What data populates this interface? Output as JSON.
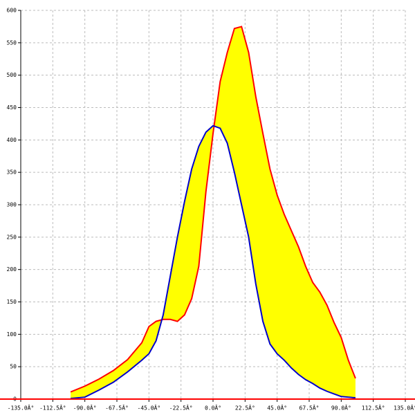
{
  "chart_data": {
    "type": "fill_between",
    "x": [
      -100,
      -90,
      -80,
      -70,
      -60,
      -50,
      -45,
      -40,
      -35,
      -30,
      -25,
      -20,
      -15,
      -10,
      -5,
      0,
      5,
      10,
      15,
      20,
      25,
      30,
      35,
      40,
      45,
      50,
      55,
      60,
      65,
      70,
      75,
      80,
      85,
      90,
      95,
      100
    ],
    "series": [
      {
        "color": "#ff0000",
        "values": [
          11,
          20,
          31,
          44,
          61,
          87,
          112,
          120,
          123,
          123,
          120,
          130,
          155,
          205,
          320,
          410,
          490,
          535,
          572,
          575,
          535,
          467,
          410,
          355,
          315,
          285,
          260,
          235,
          205,
          180,
          165,
          145,
          118,
          95,
          60,
          32
        ]
      },
      {
        "color": "#0000cc",
        "values": [
          1,
          3,
          14,
          26,
          42,
          60,
          70,
          90,
          130,
          190,
          250,
          305,
          355,
          390,
          412,
          422,
          418,
          395,
          350,
          300,
          250,
          178,
          120,
          85,
          70,
          60,
          48,
          38,
          30,
          24,
          17,
          12,
          8,
          4,
          3,
          2
        ]
      }
    ],
    "fill": "#ffff00",
    "xlim": [
      -135,
      135
    ],
    "xticks": [
      {
        "value": -135,
        "label": "-135.0Â°"
      },
      {
        "value": -112.5,
        "label": "-112.5Â°"
      },
      {
        "value": -90,
        "label": "-90.0Â°"
      },
      {
        "value": -67.5,
        "label": "-67.5Â°"
      },
      {
        "value": -45,
        "label": "-45.0Â°"
      },
      {
        "value": -22.5,
        "label": "-22.5Â°"
      },
      {
        "value": 0,
        "label": "0.0Â°"
      },
      {
        "value": 22.5,
        "label": "22.5Â°"
      },
      {
        "value": 45,
        "label": "45.0Â°"
      },
      {
        "value": 67.5,
        "label": "67.5Â°"
      },
      {
        "value": 90,
        "label": "90.0Â°"
      },
      {
        "value": 112.5,
        "label": "112.5Â°"
      },
      {
        "value": 135,
        "label": "135.0Â°"
      }
    ],
    "ylim": [
      0,
      600
    ],
    "yticks": [
      0,
      50,
      100,
      150,
      200,
      250,
      300,
      350,
      400,
      450,
      500,
      550,
      600
    ],
    "grid": true
  }
}
